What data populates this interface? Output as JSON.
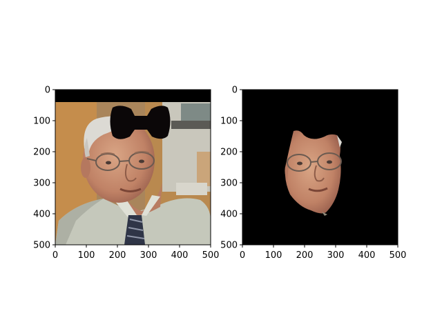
{
  "chart_data": [
    {
      "type": "image",
      "title": "",
      "xlabel": "",
      "ylabel": "",
      "xlim": [
        0,
        500
      ],
      "ylim": [
        500,
        0
      ],
      "xticks": [
        "0",
        "100",
        "200",
        "300",
        "400",
        "500"
      ],
      "yticks": [
        "0",
        "100",
        "200",
        "300",
        "400",
        "500"
      ],
      "content": "photo-with-bowtie-mask",
      "colors": {
        "background": "#c9a06a",
        "mask": "#0b0708",
        "shirt": "#c5c8bb",
        "skin": "#c58f72"
      }
    },
    {
      "type": "image",
      "title": "",
      "xlabel": "",
      "ylabel": "",
      "xlim": [
        0,
        500
      ],
      "ylim": [
        500,
        0
      ],
      "xticks": [
        "0",
        "100",
        "200",
        "300",
        "400",
        "500"
      ],
      "yticks": [
        "0",
        "100",
        "200",
        "300",
        "400",
        "500"
      ],
      "content": "face-segment-on-black",
      "colors": {
        "background": "#000000",
        "skin": "#c58f72"
      }
    }
  ]
}
